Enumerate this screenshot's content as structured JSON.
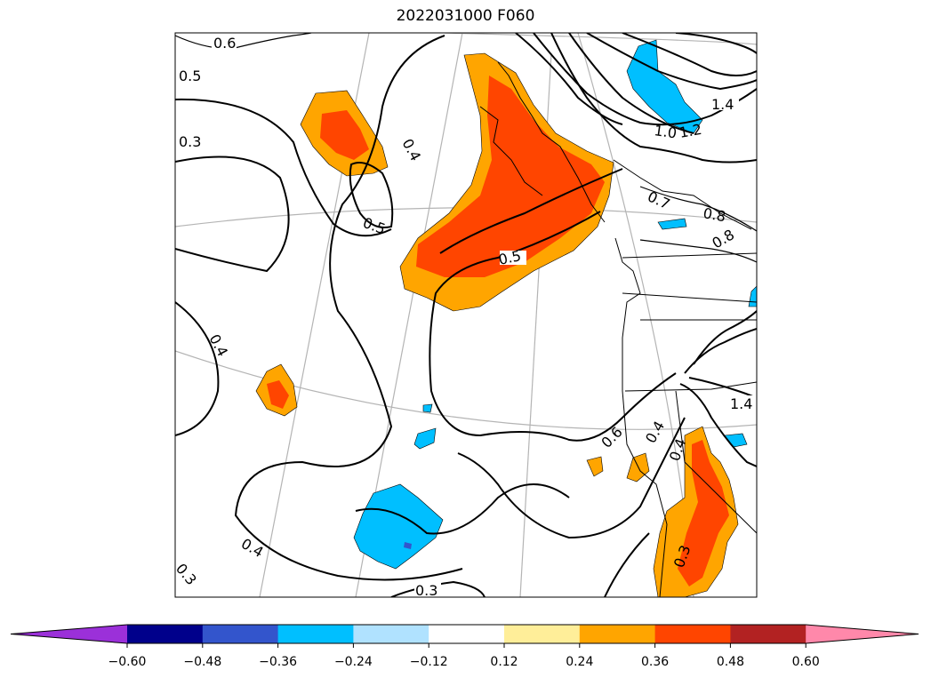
{
  "title": "2022031000 F060",
  "colorbar": {
    "extend": "both",
    "levels": [
      -0.6,
      -0.48,
      -0.36,
      -0.24,
      -0.12,
      0.12,
      0.24,
      0.36,
      0.48,
      0.6
    ],
    "tick_labels": [
      "−0.60",
      "−0.48",
      "−0.36",
      "−0.24",
      "−0.12",
      "0.12",
      "0.24",
      "0.36",
      "0.48",
      "0.60"
    ],
    "colors": [
      "#9b30d9",
      "#00008b",
      "#3355cc",
      "#00bfff",
      "#b0e2ff",
      "#ffffff",
      "#ffee99",
      "#ffa500",
      "#ff4500",
      "#b22222",
      "#ff88aa"
    ]
  },
  "contour_labels": [
    "0.6",
    "0.5",
    "0.3",
    "0.4",
    "0.5",
    "0.5",
    "0.4",
    "0.4",
    "0.3",
    "0.3",
    "0.4",
    "0.6",
    "0.4",
    "0.3",
    "1.4",
    "1.0",
    "1.2",
    "0.7",
    "0.8",
    "0.8",
    "1.4"
  ],
  "colors": {
    "contour": "#000000",
    "graticule": "#b4b4b4",
    "orange": "#ffa500",
    "red_orange": "#ff4500",
    "light_blue": "#00bfff",
    "blue": "#3355cc"
  }
}
